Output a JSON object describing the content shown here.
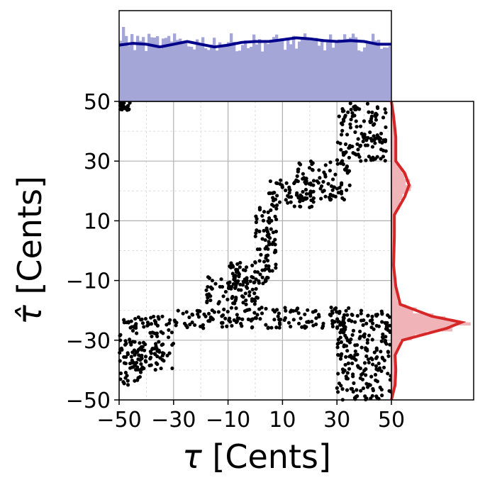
{
  "chart_data": {
    "type": "scatter",
    "xlabel_symbol": "τ",
    "ylabel_symbol": "τ̂",
    "xlabel_unit": "[Cents]",
    "ylabel_unit": "[Cents]",
    "xlim": [
      -50,
      50
    ],
    "ylim": [
      -50,
      50
    ],
    "xticks": [
      "−50",
      "−30",
      "−10",
      "10",
      "30",
      "50"
    ],
    "yticks": [
      "−50",
      "−30",
      "−10",
      "10",
      "30",
      "50"
    ],
    "tick_values": [
      -50,
      -30,
      -10,
      10,
      30,
      50
    ],
    "grid": true,
    "point_color": "#000000",
    "colors": {
      "top_hist": "#a3a6d6",
      "top_kde": "#00008b",
      "right_hist": "#f0b4b8",
      "right_kde": "#d62728"
    },
    "scatter_clusters": [
      {
        "x": [
          -50,
          -30
        ],
        "y": [
          -40,
          -22
        ]
      },
      {
        "x": [
          -50,
          -40
        ],
        "y": [
          -45,
          -33
        ]
      },
      {
        "x": [
          -30,
          35
        ],
        "y": [
          -26,
          -19
        ]
      },
      {
        "x": [
          -18,
          2
        ],
        "y": [
          -18,
          -8
        ]
      },
      {
        "x": [
          -10,
          5
        ],
        "y": [
          -13,
          -3
        ]
      },
      {
        "x": [
          0,
          8
        ],
        "y": [
          -8,
          15
        ]
      },
      {
        "x": [
          5,
          22
        ],
        "y": [
          14,
          24
        ]
      },
      {
        "x": [
          15,
          35
        ],
        "y": [
          17,
          30
        ]
      },
      {
        "x": [
          30,
          48
        ],
        "y": [
          30,
          50
        ]
      },
      {
        "x": [
          30,
          50
        ],
        "y": [
          -50,
          -20
        ]
      },
      {
        "x": [
          -50,
          -46
        ],
        "y": [
          47,
          50
        ]
      }
    ],
    "top_marginal": {
      "type": "histogram+kde",
      "kde": [
        [
          -50,
          0.62
        ],
        [
          -45,
          0.64
        ],
        [
          -40,
          0.63
        ],
        [
          -35,
          0.6
        ],
        [
          -30,
          0.63
        ],
        [
          -25,
          0.66
        ],
        [
          -20,
          0.63
        ],
        [
          -15,
          0.6
        ],
        [
          -10,
          0.62
        ],
        [
          -5,
          0.65
        ],
        [
          0,
          0.66
        ],
        [
          5,
          0.66
        ],
        [
          10,
          0.68
        ],
        [
          15,
          0.7
        ],
        [
          20,
          0.69
        ],
        [
          25,
          0.67
        ],
        [
          30,
          0.66
        ],
        [
          35,
          0.67
        ],
        [
          40,
          0.66
        ],
        [
          45,
          0.63
        ],
        [
          50,
          0.63
        ]
      ]
    },
    "right_marginal": {
      "type": "histogram+kde",
      "kde": [
        [
          -50,
          0.0
        ],
        [
          -45,
          0.05
        ],
        [
          -40,
          0.06
        ],
        [
          -35,
          0.05
        ],
        [
          -30,
          0.15
        ],
        [
          -26,
          0.75
        ],
        [
          -24,
          0.95
        ],
        [
          -22,
          0.55
        ],
        [
          -18,
          0.12
        ],
        [
          -12,
          0.06
        ],
        [
          -5,
          0.03
        ],
        [
          5,
          0.04
        ],
        [
          12,
          0.04
        ],
        [
          18,
          0.18
        ],
        [
          22,
          0.24
        ],
        [
          26,
          0.18
        ],
        [
          30,
          0.06
        ],
        [
          38,
          0.06
        ],
        [
          45,
          0.03
        ],
        [
          50,
          0.0
        ]
      ]
    }
  }
}
